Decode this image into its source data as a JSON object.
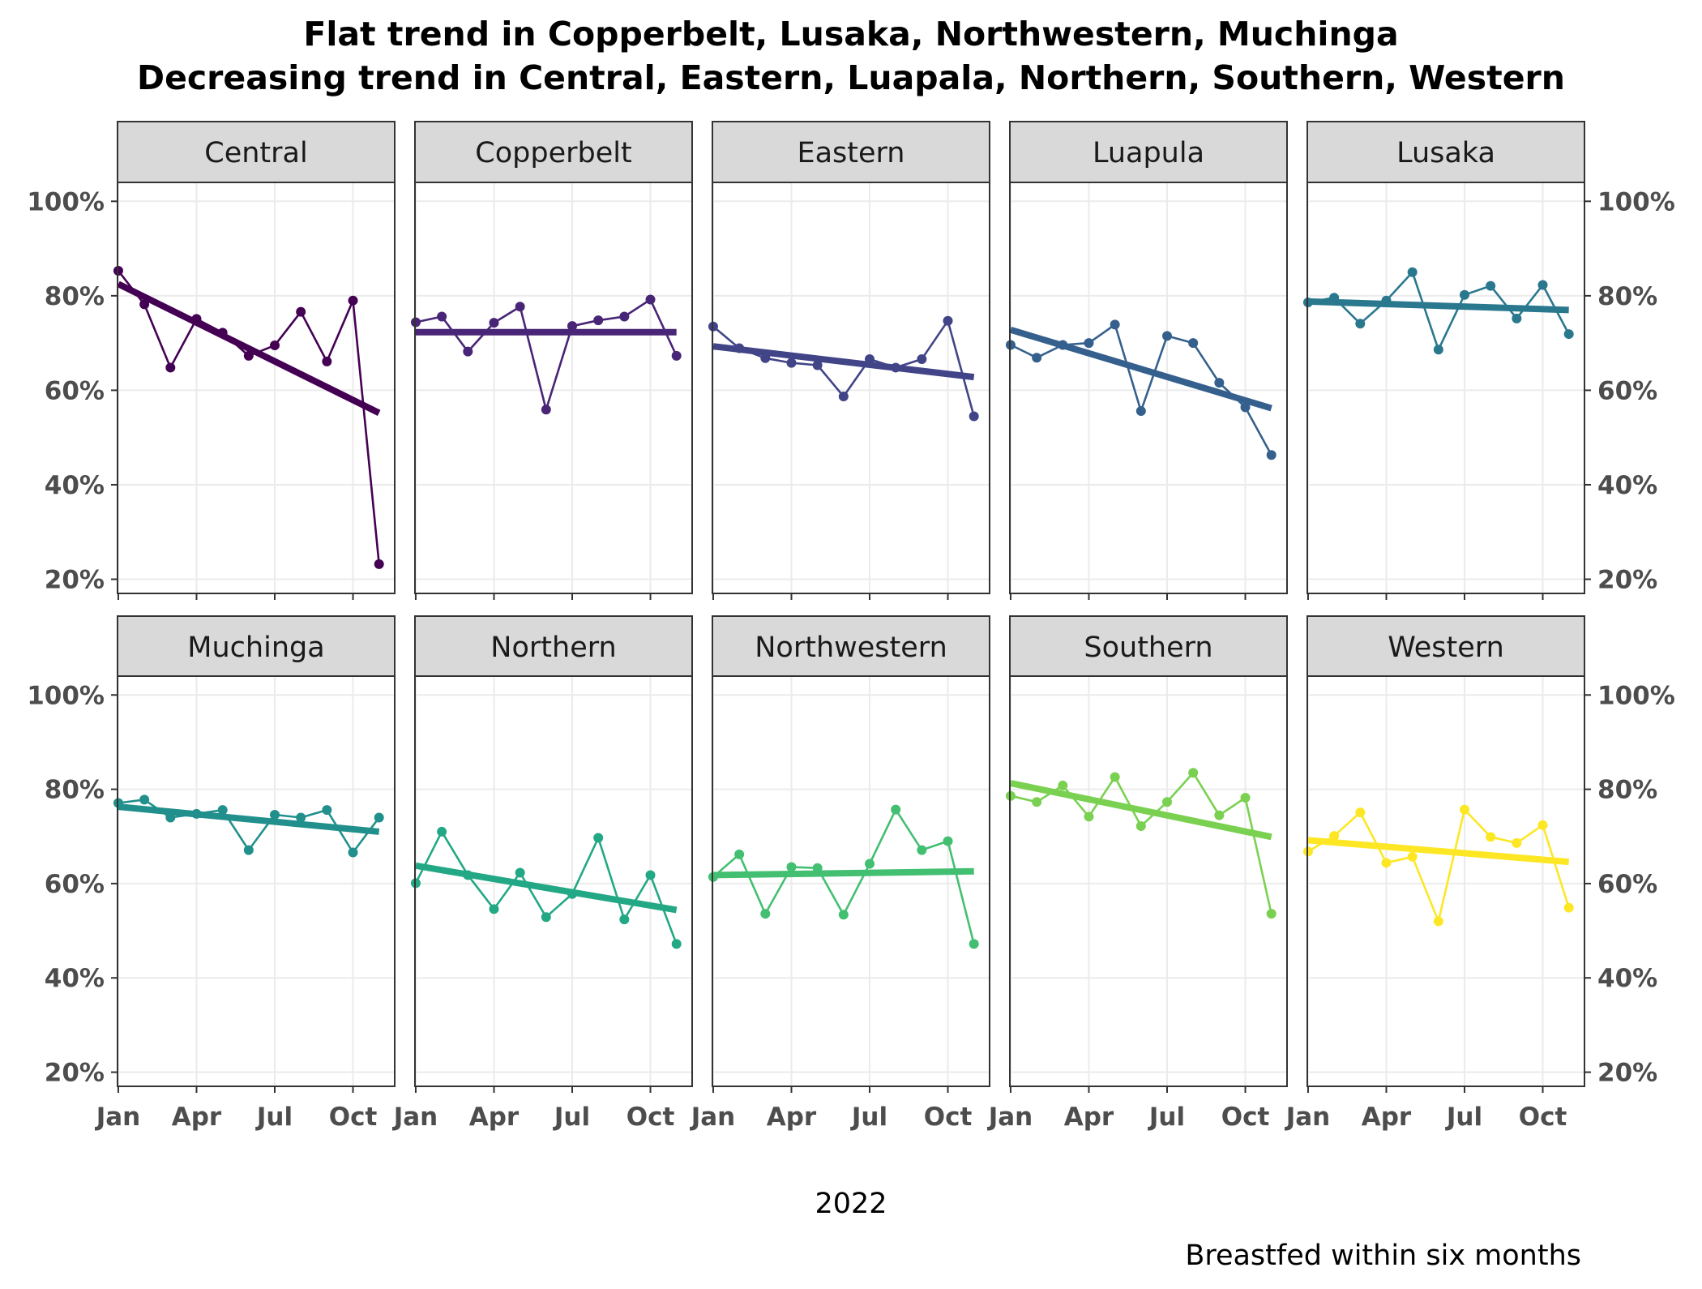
{
  "chart_data": {
    "type": "line",
    "title_lines": [
      "Flat trend in Copperbelt, Lusaka, Northwestern, Muchinga",
      "Decreasing trend in Central, Eastern, Luapala, Northern, Southern, Western"
    ],
    "xlabel": "2022",
    "caption": "Breastfed within six months",
    "x_ticks": [
      "Jan",
      "Apr",
      "Jul",
      "Oct"
    ],
    "x_tick_months": [
      1,
      4,
      7,
      10
    ],
    "xlim": [
      0.97,
      11.6
    ],
    "y_ticks": [
      "20%",
      "40%",
      "60%",
      "80%",
      "100%"
    ],
    "y_tick_values": [
      20,
      40,
      60,
      80,
      100
    ],
    "ylim": [
      17,
      104
    ],
    "grid": true,
    "layout": {
      "rows": 2,
      "cols": 5
    },
    "panels": [
      {
        "name": "Central",
        "color": "#440154",
        "months": [
          1,
          2,
          3,
          4,
          5,
          6,
          7,
          8,
          9,
          10,
          11
        ],
        "values": [
          85.3,
          78.2,
          64.8,
          75.1,
          72.2,
          67.3,
          69.5,
          76.6,
          66.1,
          79.0,
          23.2
        ],
        "trend": [
          82.5,
          55.2
        ]
      },
      {
        "name": "Copperbelt",
        "color": "#482576",
        "months": [
          1,
          2,
          3,
          4,
          5,
          6,
          7,
          8,
          9,
          10,
          11
        ],
        "values": [
          74.4,
          75.6,
          68.2,
          74.3,
          77.7,
          55.9,
          73.6,
          74.8,
          75.6,
          79.2,
          67.3
        ],
        "trend": [
          72.3,
          72.3
        ]
      },
      {
        "name": "Eastern",
        "color": "#414487",
        "months": [
          1,
          2,
          3,
          4,
          5,
          6,
          7,
          8,
          9,
          10,
          11
        ],
        "values": [
          73.5,
          68.9,
          66.8,
          65.8,
          65.3,
          58.7,
          66.6,
          64.8,
          66.6,
          74.7,
          54.5
        ],
        "trend": [
          69.3,
          62.8
        ]
      },
      {
        "name": "Luapula",
        "color": "#35608D",
        "months": [
          1,
          2,
          3,
          4,
          5,
          6,
          7,
          8,
          9,
          10,
          11
        ],
        "values": [
          69.6,
          66.9,
          69.6,
          70.0,
          73.9,
          55.6,
          71.5,
          70.0,
          61.6,
          56.4,
          46.3
        ],
        "trend": [
          72.8,
          56.2
        ]
      },
      {
        "name": "Lusaka",
        "color": "#2A788E",
        "months": [
          1,
          2,
          3,
          4,
          5,
          6,
          7,
          8,
          9,
          10,
          11
        ],
        "values": [
          78.6,
          79.6,
          74.1,
          79.0,
          85.0,
          68.6,
          80.2,
          82.1,
          75.2,
          82.3,
          71.9
        ],
        "trend": [
          78.8,
          77.0
        ]
      },
      {
        "name": "Muchinga",
        "color": "#21908C",
        "months": [
          1,
          2,
          3,
          4,
          5,
          6,
          7,
          8,
          9,
          10,
          11
        ],
        "values": [
          77.1,
          77.8,
          74.0,
          74.8,
          75.6,
          67.1,
          74.6,
          74.0,
          75.6,
          66.6,
          74.0
        ],
        "trend": [
          76.3,
          71.0
        ]
      },
      {
        "name": "Northern",
        "color": "#22A884",
        "months": [
          1,
          2,
          3,
          4,
          5,
          6,
          7,
          8,
          9,
          10,
          11
        ],
        "values": [
          60.1,
          71.0,
          61.8,
          54.6,
          62.3,
          52.9,
          57.8,
          69.7,
          52.4,
          61.8,
          47.2
        ],
        "trend": [
          63.8,
          54.4
        ]
      },
      {
        "name": "Northwestern",
        "color": "#43BF71",
        "months": [
          1,
          2,
          3,
          4,
          5,
          6,
          7,
          8,
          9,
          10,
          11
        ],
        "values": [
          61.4,
          66.2,
          53.6,
          63.5,
          63.3,
          53.4,
          64.2,
          75.7,
          67.1,
          69.0,
          47.2
        ],
        "trend": [
          61.8,
          62.6
        ]
      },
      {
        "name": "Southern",
        "color": "#7AD151",
        "months": [
          1,
          2,
          3,
          4,
          5,
          6,
          7,
          8,
          9,
          10,
          11
        ],
        "values": [
          78.6,
          77.3,
          80.8,
          74.2,
          82.6,
          72.2,
          77.3,
          83.5,
          74.5,
          78.2,
          53.6
        ],
        "trend": [
          81.3,
          69.9
        ]
      },
      {
        "name": "Western",
        "color": "#FDE725",
        "months": [
          1,
          2,
          3,
          4,
          5,
          6,
          7,
          8,
          9,
          10,
          11
        ],
        "values": [
          66.8,
          70.1,
          75.1,
          64.4,
          65.7,
          52.0,
          75.7,
          69.9,
          68.6,
          72.4,
          54.9
        ],
        "trend": [
          69.2,
          64.6
        ]
      }
    ]
  },
  "colors": {
    "panel_border": "#333333",
    "strip_fill": "#D9D9D9",
    "grid": "#EBEBEB",
    "tick": "#333333"
  }
}
